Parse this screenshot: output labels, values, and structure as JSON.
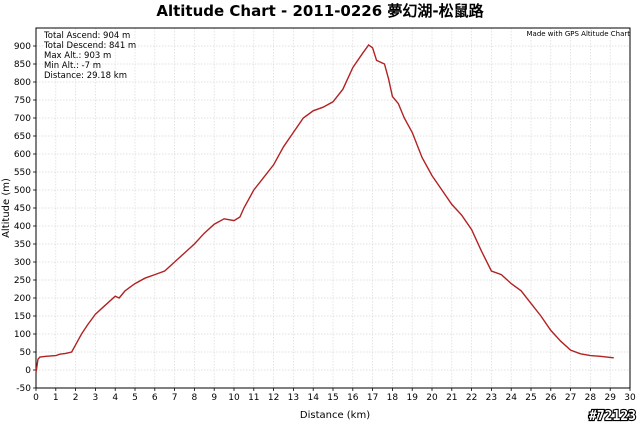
{
  "chart_data": {
    "type": "line",
    "title": "Altitude Chart - 2011-0226 夢幻湖-松鼠路",
    "xlabel": "Distance (km)",
    "ylabel": "Altitude (m)",
    "xlim": [
      0,
      30
    ],
    "ylim": [
      -50,
      950
    ],
    "x_ticks": [
      0,
      1,
      2,
      3,
      4,
      5,
      6,
      7,
      8,
      9,
      10,
      11,
      12,
      13,
      14,
      15,
      16,
      17,
      18,
      19,
      20,
      21,
      22,
      23,
      24,
      25,
      26,
      27,
      28,
      29,
      30
    ],
    "y_ticks": [
      -50,
      0,
      50,
      100,
      150,
      200,
      250,
      300,
      350,
      400,
      450,
      500,
      550,
      600,
      650,
      700,
      750,
      800,
      850,
      900
    ],
    "grid": true,
    "line_color": "#b22222",
    "series": [
      {
        "x": [
          0,
          0.1,
          0.2,
          0.5,
          1.0,
          1.2,
          1.5,
          1.8,
          2.0,
          2.3,
          2.6,
          3.0,
          3.5,
          4.0,
          4.2,
          4.5,
          5.0,
          5.5,
          6.0,
          6.5,
          7.0,
          7.5,
          8.0,
          8.5,
          9.0,
          9.5,
          10.0,
          10.3,
          10.5,
          11.0,
          11.5,
          12.0,
          12.5,
          13.0,
          13.5,
          14.0,
          14.5,
          15.0,
          15.5,
          16.0,
          16.5,
          16.8,
          17.0,
          17.2,
          17.6,
          17.8,
          18.0,
          18.3,
          18.6,
          19.0,
          19.5,
          20.0,
          20.5,
          21.0,
          21.5,
          22.0,
          22.5,
          23.0,
          23.5,
          24.0,
          24.5,
          25.0,
          25.5,
          26.0,
          26.5,
          27.0,
          27.5,
          28.0,
          28.5,
          29.0,
          29.18
        ],
        "y": [
          -7,
          30,
          36,
          38,
          40,
          44,
          46,
          50,
          70,
          100,
          125,
          155,
          180,
          205,
          200,
          220,
          240,
          255,
          265,
          275,
          300,
          325,
          350,
          380,
          405,
          420,
          415,
          425,
          450,
          500,
          535,
          570,
          620,
          660,
          700,
          720,
          730,
          745,
          780,
          840,
          880,
          903,
          895,
          860,
          850,
          810,
          760,
          740,
          700,
          660,
          590,
          540,
          500,
          460,
          430,
          390,
          330,
          275,
          265,
          240,
          220,
          185,
          150,
          110,
          80,
          55,
          45,
          40,
          38,
          35,
          34
        ]
      }
    ]
  },
  "stats": {
    "total_ascend": "Total Ascend: 904 m",
    "total_descend": "Total Descend: 841 m",
    "max_alt": "Max Alt.: 903 m",
    "min_alt": "Min Alt.: -7 m",
    "distance": "Distance: 29.18 km"
  },
  "credit": "Made with GPS Altitude Chart",
  "watermark": "#72123"
}
